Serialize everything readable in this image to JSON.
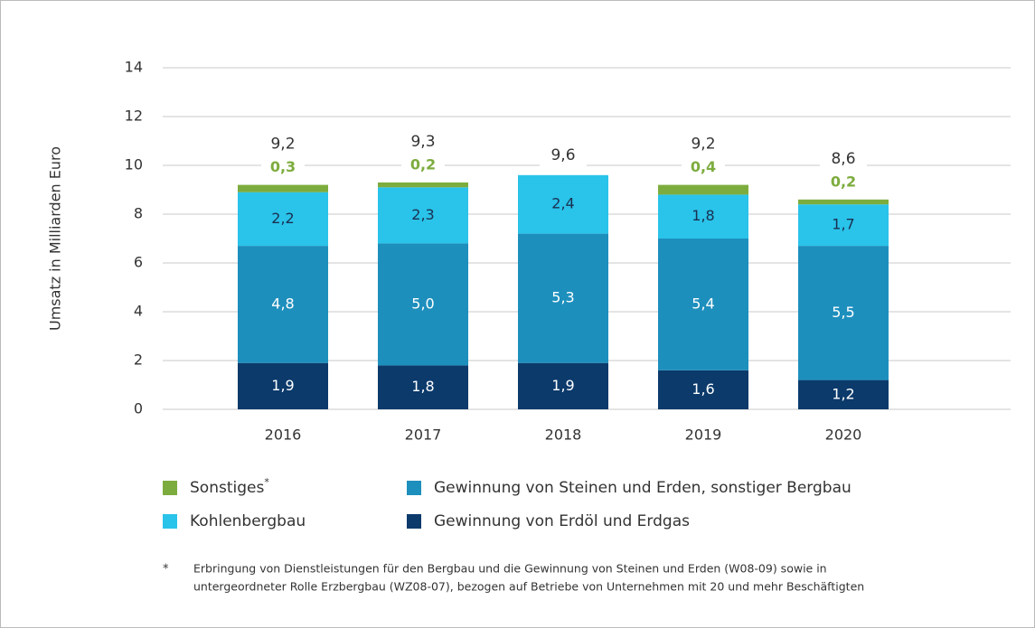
{
  "chart_data": {
    "type": "stacked_bar",
    "y_axis_label": "Umsatz in Milliarden Euro",
    "categories": [
      "2016",
      "2017",
      "2018",
      "2019",
      "2020"
    ],
    "series": [
      {
        "name": "Gewinnung von Erdöl und Erdgas",
        "color": "#0b3a6b",
        "values": [
          1.9,
          1.8,
          1.9,
          1.6,
          1.2
        ],
        "value_labels": [
          "1,9",
          "1,8",
          "1,9",
          "1,6",
          "1,2"
        ]
      },
      {
        "name": "Gewinnung von Steinen und Erden, sonstiger Bergbau",
        "color": "#1d8fbd",
        "values": [
          4.8,
          5.0,
          5.3,
          5.4,
          5.5
        ],
        "value_labels": [
          "4,8",
          "5,0",
          "5,3",
          "5,4",
          "5,5"
        ]
      },
      {
        "name": "Kohlenbergbau",
        "color": "#2ac3ea",
        "values": [
          2.2,
          2.3,
          2.4,
          1.8,
          1.7
        ],
        "value_labels": [
          "2,2",
          "2,3",
          "2,4",
          "1,8",
          "1,7"
        ]
      },
      {
        "name": "Sonstiges",
        "name_marker": "*",
        "color": "#7dac3e",
        "values": [
          0.3,
          0.2,
          null,
          0.4,
          0.2
        ],
        "value_labels": [
          "0,3",
          "0,2",
          null,
          "0,4",
          "0,2"
        ]
      }
    ],
    "totals": [
      9.2,
      9.3,
      9.6,
      9.2,
      8.6
    ],
    "total_labels": [
      "9,2",
      "9,3",
      "9,6",
      "9,2",
      "8,6"
    ],
    "ylim": [
      0,
      14
    ],
    "yticks": [
      0,
      2,
      4,
      6,
      8,
      10,
      12,
      14
    ],
    "grid": true,
    "footnote": {
      "marker": "*",
      "lines": [
        "Erbringung von Dienstleistungen für den Bergbau und die Gewinnung von Steinen und Erden (W08-09) sowie in",
        "untergeordneter Rolle Erzbergbau (WZ08-07), bezogen auf Betriebe von Unternehmen mit 20 und mehr Beschäftigten"
      ]
    }
  }
}
